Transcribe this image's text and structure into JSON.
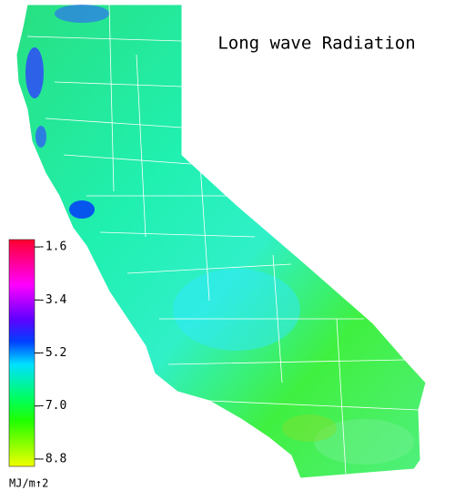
{
  "chart_data": {
    "type": "map",
    "title": "Long wave Radiation",
    "colorbar": {
      "label": "MJ/m↑2",
      "clim": [
        -9.05,
        -1.35
      ],
      "ticks": [
        -1.6,
        -3.4,
        -5.2,
        {
          "value": -7,
          "label": "-7.0"
        },
        -8.8
      ]
    }
  }
}
